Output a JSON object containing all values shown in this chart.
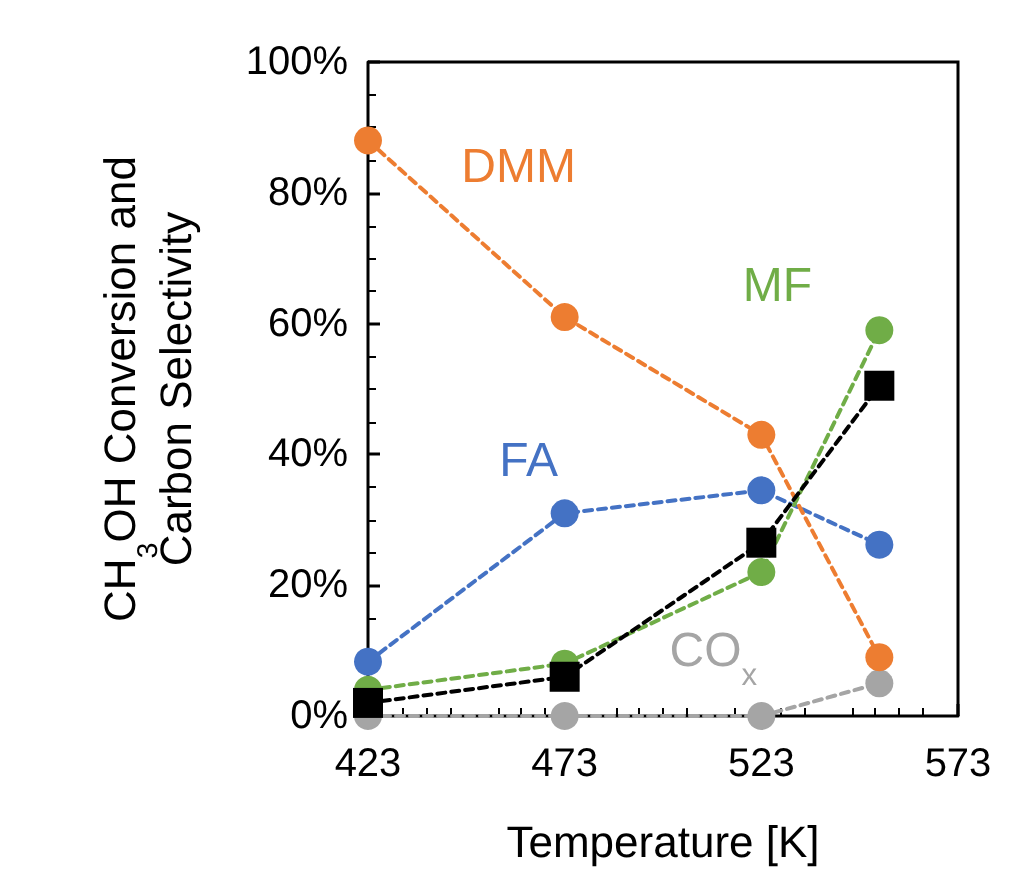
{
  "chart_data": {
    "type": "line",
    "xlabel": "Temperature [K]",
    "ylabel": "CH$_{3}$OH Conversion and Carbon Selectivity",
    "x": [
      423,
      473,
      523,
      553
    ],
    "series": [
      {
        "name": "CO$_{x}$",
        "color": "#a5a5a5",
        "marker": "circle",
        "values": [
          0,
          0,
          0,
          5
        ]
      },
      {
        "name": "FA",
        "color": "#4472c4",
        "marker": "circle",
        "values": [
          8.3,
          31,
          34.5,
          26.2
        ]
      },
      {
        "name": "DMM",
        "color": "#ed7d31",
        "marker": "circle",
        "values": [
          88,
          61,
          43,
          9
        ]
      },
      {
        "name": "MF",
        "color": "#70ad47",
        "marker": "circle",
        "values": [
          4,
          8,
          22,
          59
        ]
      },
      {
        "color": "#000000",
        "marker": "square",
        "values": [
          2,
          6,
          26.5,
          50.5
        ]
      }
    ],
    "line_style": "dashed",
    "grid": false,
    "xlim": [
      423,
      573
    ],
    "xticks": [
      423,
      473,
      523,
      573
    ],
    "ylim": [
      0,
      100
    ],
    "yticks": [
      {
        "value": 0,
        "label": "0%"
      },
      {
        "value": 20,
        "label": "20%"
      },
      {
        "value": 40,
        "label": "40%"
      },
      {
        "value": 60,
        "label": "60%"
      },
      {
        "value": 80,
        "label": "80%"
      },
      {
        "value": 100,
        "label": "100%"
      }
    ]
  }
}
